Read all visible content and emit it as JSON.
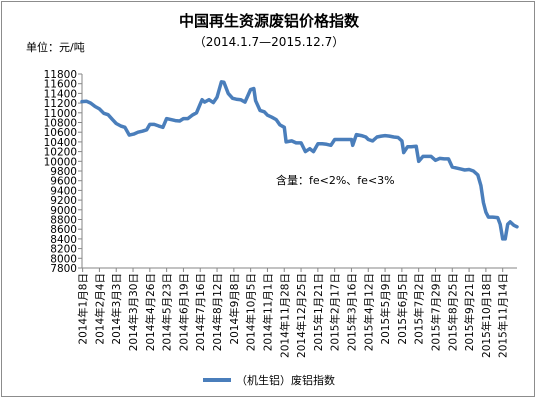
{
  "chart_data": {
    "type": "line",
    "title": "中国再生资源废铝价格指数",
    "subtitle": "（2014.1.7—2015.12.7）",
    "unit_label": "单位：元/吨",
    "annotation": "含量：fe<2%、fe<3%",
    "legend_position": "bottom",
    "grid": false,
    "ylim": [
      7800,
      11800
    ],
    "yticks": [
      7800,
      8000,
      8200,
      8400,
      8600,
      8800,
      9000,
      9200,
      9400,
      9600,
      9800,
      10000,
      10200,
      10400,
      10600,
      10800,
      11000,
      11200,
      11400,
      11600,
      11800
    ],
    "x_range": [
      "2014-01-07",
      "2015-12-07"
    ],
    "xticks": [
      "2014年1月8日",
      "2014年2月4日",
      "2014年3月3日",
      "2014年3月30日",
      "2014年4月26日",
      "2014年5月23日",
      "2014年6月19日",
      "2014年7月16日",
      "2014年8月12日",
      "2014年9月8日",
      "2014年10月5日",
      "2014年11月1日",
      "2014年11月28日",
      "2014年12月25日",
      "2015年1月21日",
      "2015年2月17日",
      "2015年3月16日",
      "2015年4月12日",
      "2015年5月9日",
      "2015年6月5日",
      "2015年7月2日",
      "2015年7月29日",
      "2015年8月25日",
      "2015年9月21日",
      "2015年10月18日",
      "2015年11月14日"
    ],
    "series": [
      {
        "name": "（机生铝）废铝指数",
        "color": "#4a7ebb",
        "points": [
          [
            "2014-01-07",
            11230
          ],
          [
            "2014-01-14",
            11240
          ],
          [
            "2014-01-21",
            11200
          ],
          [
            "2014-01-28",
            11130
          ],
          [
            "2014-02-04",
            11080
          ],
          [
            "2014-02-11",
            10990
          ],
          [
            "2014-02-18",
            10960
          ],
          [
            "2014-02-25",
            10860
          ],
          [
            "2014-03-03",
            10780
          ],
          [
            "2014-03-10",
            10730
          ],
          [
            "2014-03-17",
            10700
          ],
          [
            "2014-03-24",
            10540
          ],
          [
            "2014-03-31",
            10560
          ],
          [
            "2014-04-07",
            10600
          ],
          [
            "2014-04-14",
            10620
          ],
          [
            "2014-04-21",
            10650
          ],
          [
            "2014-04-26",
            10760
          ],
          [
            "2014-05-03",
            10760
          ],
          [
            "2014-05-10",
            10730
          ],
          [
            "2014-05-17",
            10700
          ],
          [
            "2014-05-23",
            10880
          ],
          [
            "2014-05-30",
            10860
          ],
          [
            "2014-06-06",
            10840
          ],
          [
            "2014-06-13",
            10830
          ],
          [
            "2014-06-19",
            10880
          ],
          [
            "2014-06-26",
            10880
          ],
          [
            "2014-07-03",
            10950
          ],
          [
            "2014-07-10",
            11000
          ],
          [
            "2014-07-16",
            11180
          ],
          [
            "2014-07-19",
            11270
          ],
          [
            "2014-07-23",
            11220
          ],
          [
            "2014-07-30",
            11270
          ],
          [
            "2014-08-06",
            11210
          ],
          [
            "2014-08-12",
            11320
          ],
          [
            "2014-08-19",
            11640
          ],
          [
            "2014-08-23",
            11630
          ],
          [
            "2014-08-30",
            11400
          ],
          [
            "2014-09-06",
            11300
          ],
          [
            "2014-09-12",
            11280
          ],
          [
            "2014-09-19",
            11270
          ],
          [
            "2014-09-26",
            11220
          ],
          [
            "2014-10-05",
            11480
          ],
          [
            "2014-10-10",
            11500
          ],
          [
            "2014-10-13",
            11250
          ],
          [
            "2014-10-20",
            11050
          ],
          [
            "2014-10-27",
            11020
          ],
          [
            "2014-11-01",
            10950
          ],
          [
            "2014-11-08",
            10910
          ],
          [
            "2014-11-15",
            10860
          ],
          [
            "2014-11-21",
            10750
          ],
          [
            "2014-11-28",
            10700
          ],
          [
            "2014-12-01",
            10400
          ],
          [
            "2014-12-10",
            10420
          ],
          [
            "2014-12-17",
            10380
          ],
          [
            "2014-12-25",
            10380
          ],
          [
            "2015-01-01",
            10200
          ],
          [
            "2015-01-08",
            10260
          ],
          [
            "2015-01-14",
            10200
          ],
          [
            "2015-01-21",
            10360
          ],
          [
            "2015-01-28",
            10360
          ],
          [
            "2015-02-04",
            10350
          ],
          [
            "2015-02-11",
            10330
          ],
          [
            "2015-02-17",
            10450
          ],
          [
            "2015-02-28",
            10450
          ],
          [
            "2015-03-07",
            10450
          ],
          [
            "2015-03-16",
            10450
          ],
          [
            "2015-03-18",
            10330
          ],
          [
            "2015-03-24",
            10550
          ],
          [
            "2015-04-01",
            10530
          ],
          [
            "2015-04-08",
            10500
          ],
          [
            "2015-04-12",
            10450
          ],
          [
            "2015-04-19",
            10420
          ],
          [
            "2015-04-26",
            10500
          ],
          [
            "2015-05-03",
            10520
          ],
          [
            "2015-05-09",
            10530
          ],
          [
            "2015-05-16",
            10520
          ],
          [
            "2015-05-23",
            10500
          ],
          [
            "2015-05-30",
            10490
          ],
          [
            "2015-06-05",
            10420
          ],
          [
            "2015-06-08",
            10180
          ],
          [
            "2015-06-14",
            10300
          ],
          [
            "2015-06-20",
            10300
          ],
          [
            "2015-06-28",
            10310
          ],
          [
            "2015-07-02",
            10000
          ],
          [
            "2015-07-09",
            10100
          ],
          [
            "2015-07-16",
            10100
          ],
          [
            "2015-07-22",
            10100
          ],
          [
            "2015-07-29",
            10020
          ],
          [
            "2015-08-05",
            10060
          ],
          [
            "2015-08-12",
            10050
          ],
          [
            "2015-08-19",
            10050
          ],
          [
            "2015-08-25",
            9880
          ],
          [
            "2015-09-01",
            9860
          ],
          [
            "2015-09-08",
            9840
          ],
          [
            "2015-09-14",
            9820
          ],
          [
            "2015-09-21",
            9830
          ],
          [
            "2015-09-28",
            9800
          ],
          [
            "2015-10-05",
            9720
          ],
          [
            "2015-10-10",
            9500
          ],
          [
            "2015-10-14",
            9150
          ],
          [
            "2015-10-18",
            8950
          ],
          [
            "2015-10-22",
            8850
          ],
          [
            "2015-10-29",
            8850
          ],
          [
            "2015-11-06",
            8840
          ],
          [
            "2015-11-10",
            8700
          ],
          [
            "2015-11-14",
            8400
          ],
          [
            "2015-11-18",
            8400
          ],
          [
            "2015-11-22",
            8700
          ],
          [
            "2015-11-26",
            8750
          ],
          [
            "2015-12-02",
            8680
          ],
          [
            "2015-12-07",
            8650
          ]
        ]
      }
    ]
  }
}
